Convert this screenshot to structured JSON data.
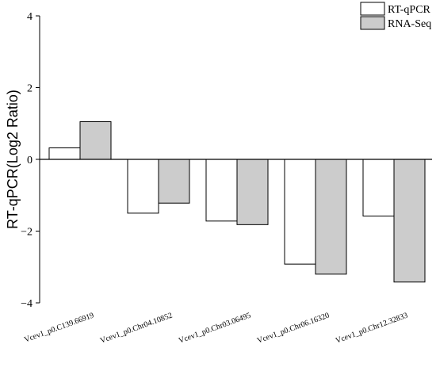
{
  "chart_data": {
    "type": "bar",
    "title": "",
    "xlabel": "",
    "ylabel": "RT-qPCR(Log2 Ratio)",
    "ylim": [
      -4,
      4
    ],
    "yticks": [
      4,
      2,
      0,
      -2,
      -4
    ],
    "ytick_labels": [
      "4",
      "2",
      "0",
      "−2",
      "−4"
    ],
    "categories": [
      "Vcev1_p0.C139.66919",
      "Vcev1_p0.Chr04.10852",
      "Vcev1_p0.Chr03.06495",
      "Vcev1_p0.Chr06.16320",
      "Vcev1_p0.Chr12.32833"
    ],
    "series": [
      {
        "name": "RT-qPCR",
        "color": "#ffffff",
        "values": [
          0.32,
          -1.5,
          -1.72,
          -2.92,
          -1.58
        ]
      },
      {
        "name": "RNA-Seq",
        "color": "#cccccc",
        "values": [
          1.05,
          -1.22,
          -1.82,
          -3.2,
          -3.42
        ]
      }
    ],
    "grid": false,
    "legend_position": "top-right"
  }
}
